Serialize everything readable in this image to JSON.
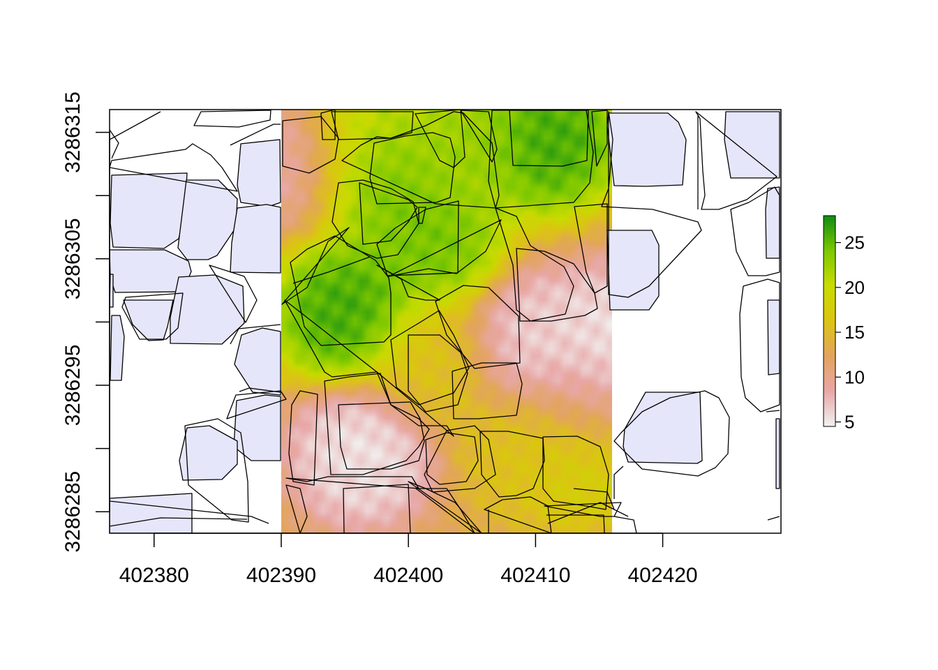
{
  "chart_data": {
    "type": "heatmap",
    "title": "",
    "xlabel": "",
    "ylabel": "",
    "x_ticks": [
      402380,
      402390,
      402400,
      402410,
      402420
    ],
    "y_ticks": [
      3286285,
      3286295,
      3286305,
      3286315
    ],
    "y_minor_ticks": [
      3286290,
      3286300,
      3286310
    ],
    "xlim": [
      402376.5,
      402429.3
    ],
    "ylim": [
      3286283.3,
      3286316.8
    ],
    "raster_extent": {
      "xmin": 402390,
      "xmax": 402416,
      "ymin": 3286283.3,
      "ymax": 3286316.8
    },
    "legend": {
      "position": "right",
      "min": 4.5,
      "max": 28,
      "ticks": [
        5,
        10,
        15,
        20,
        25
      ],
      "colors": [
        "#f2f2f2",
        "#e8a7a7",
        "#e3a45e",
        "#dcc413",
        "#c8dc00",
        "#7dc800",
        "#0f8c13"
      ]
    },
    "highlight_fill": "#e6e6fa",
    "outline_color": "#000000",
    "grid": false,
    "hotspots": [
      {
        "x": 402395.2,
        "y": 3286300.8,
        "value": 27
      },
      {
        "x": 402401.8,
        "y": 3286306.3,
        "value": 25
      },
      {
        "x": 402397.5,
        "y": 3286311.8,
        "value": 25
      },
      {
        "x": 402411.0,
        "y": 3286314.3,
        "value": 27
      },
      {
        "x": 402404.5,
        "y": 3286313.8,
        "value": 23
      },
      {
        "x": 402396.5,
        "y": 3286315.5,
        "value": 21
      },
      {
        "x": 402413.3,
        "y": 3286289.7,
        "value": 19
      },
      {
        "x": 402409.5,
        "y": 3286290.2,
        "value": 16
      },
      {
        "x": 402402.0,
        "y": 3286296.8,
        "value": 16
      },
      {
        "x": 402409.8,
        "y": 3286298.3,
        "value": 6
      },
      {
        "x": 402415.8,
        "y": 3286298.8,
        "value": 5
      },
      {
        "x": 402396.3,
        "y": 3286289.5,
        "value": 5
      },
      {
        "x": 402413.8,
        "y": 3286293.8,
        "value": 8
      },
      {
        "x": 402391.5,
        "y": 3286313.3,
        "value": 8
      }
    ]
  }
}
